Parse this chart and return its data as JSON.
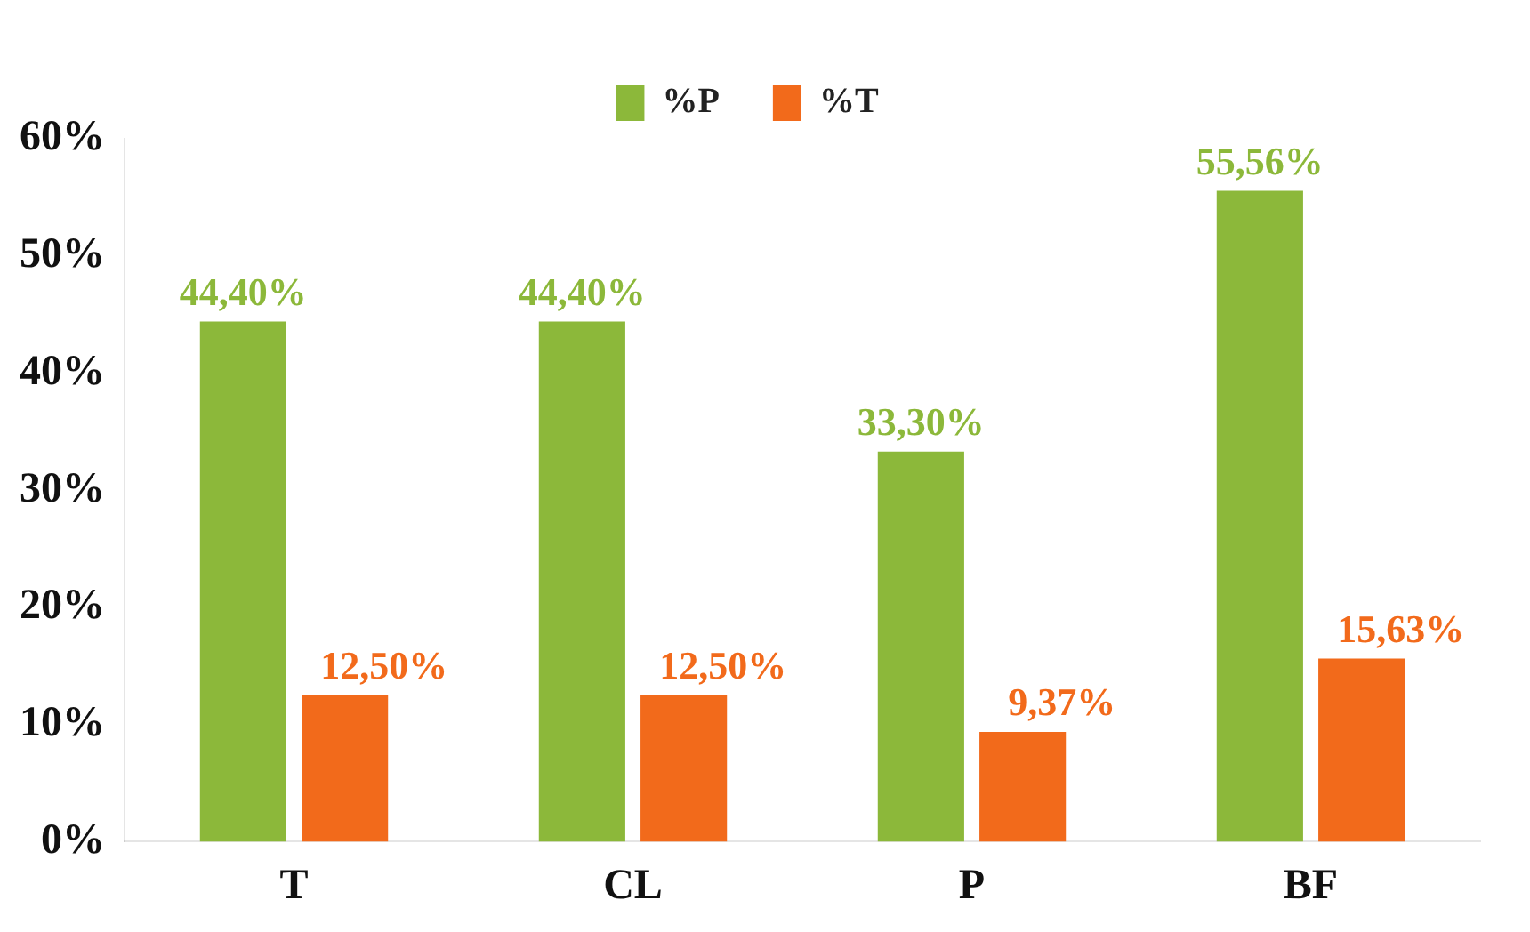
{
  "chart_data": {
    "type": "bar",
    "categories": [
      "T",
      "CL",
      "P",
      "BF"
    ],
    "series": [
      {
        "name": "%P",
        "color": "#8cb83a",
        "values": [
          44.4,
          44.4,
          33.3,
          55.56
        ],
        "value_labels": [
          "44,40%",
          "44,40%",
          "33,30%",
          "55,56%"
        ]
      },
      {
        "name": "%T",
        "color": "#f26a1b",
        "values": [
          12.5,
          12.5,
          9.37,
          15.63
        ],
        "value_labels": [
          "12,50%",
          "12,50%",
          "9,37%",
          "15,63%"
        ]
      }
    ],
    "ylim": [
      0,
      60
    ],
    "yticks": [
      {
        "value": 0,
        "label": "0%"
      },
      {
        "value": 10,
        "label": "10%"
      },
      {
        "value": 20,
        "label": "20%"
      },
      {
        "value": 30,
        "label": "30%"
      },
      {
        "value": 40,
        "label": "40%"
      },
      {
        "value": 50,
        "label": "50%"
      },
      {
        "value": 60,
        "label": "60%"
      }
    ],
    "grid": false,
    "legend": "top"
  }
}
